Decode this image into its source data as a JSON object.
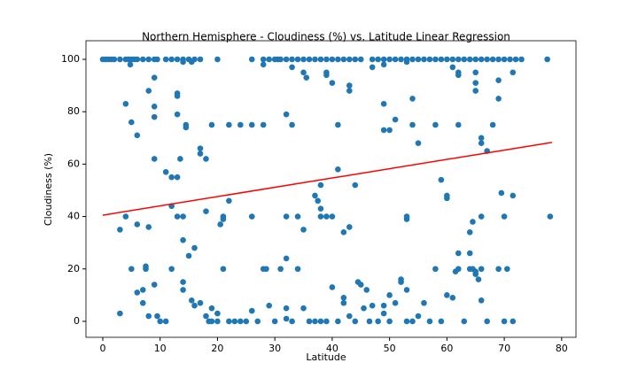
{
  "chart_data": {
    "type": "scatter",
    "title": "Northern Hemisphere - Cloudiness (%) vs. Latitude Linear Regression",
    "x_label": "Latitude",
    "y_label": "Cloudiness (%)",
    "xlim": [
      -2.93,
      82.5
    ],
    "ylim": [
      -6.1,
      107.1
    ],
    "xticks": [
      0,
      10,
      20,
      30,
      40,
      50,
      60,
      70,
      80
    ],
    "yticks": [
      0,
      20,
      40,
      60,
      80,
      100
    ],
    "series": [
      {
        "type": "scatter",
        "color": "#1f77b4",
        "x": [
          0,
          0.5,
          1,
          1.5,
          2,
          3,
          4,
          4.5,
          5,
          5.5,
          6,
          7,
          8,
          9,
          9.5,
          11,
          12,
          13,
          14,
          15,
          16,
          17,
          20,
          26,
          28,
          29,
          30,
          30.5,
          31,
          32,
          33,
          34,
          35,
          36,
          37,
          38,
          39,
          40,
          41,
          42,
          43,
          44,
          45,
          47,
          48,
          49,
          50,
          51,
          52,
          53,
          54,
          55,
          56,
          57,
          58,
          59,
          60,
          61,
          62,
          63,
          64,
          65,
          66,
          67,
          68,
          69,
          70,
          71,
          72,
          73,
          77.5,
          4.8,
          14,
          15.5,
          28,
          33,
          35,
          35.5,
          39,
          39,
          40,
          43,
          43,
          47,
          49,
          53,
          61,
          62,
          62,
          65,
          65,
          65,
          69,
          69,
          71.5,
          4,
          5,
          6,
          8,
          9,
          9,
          9,
          9,
          11,
          12,
          12,
          13,
          13,
          13,
          13,
          13,
          13.5,
          14,
          14.5,
          14.5,
          17,
          17,
          18,
          18,
          19,
          21,
          21,
          20.5,
          22,
          22,
          24,
          26,
          26,
          28,
          32,
          32,
          33,
          34,
          35,
          37,
          37.5,
          38,
          38,
          38,
          39,
          40,
          41,
          41,
          42,
          43,
          44,
          49,
          49,
          50,
          51,
          53,
          53,
          54,
          54,
          55,
          58,
          59,
          60,
          60,
          62,
          64,
          64.5,
          66,
          66,
          66,
          67,
          68,
          69.5,
          70,
          71.5,
          78,
          4,
          3,
          6,
          8,
          62,
          64,
          32,
          3,
          5,
          6,
          7,
          7,
          7.5,
          7.5,
          8,
          9,
          9.5,
          10,
          11,
          12,
          14,
          14,
          14,
          15,
          15.5,
          16,
          16,
          17,
          18,
          18.5,
          19,
          19,
          20,
          20,
          21,
          22,
          23,
          24,
          25,
          26,
          27,
          28,
          28.5,
          29,
          30,
          31,
          32,
          32,
          33,
          34,
          35,
          36,
          37,
          38,
          39,
          40,
          41,
          42,
          42,
          43,
          44,
          44.5,
          45,
          45.5,
          46,
          46.5,
          47,
          48,
          49,
          49,
          50,
          50,
          51,
          52,
          52,
          53,
          53,
          54,
          55,
          56,
          57,
          58,
          59,
          60,
          61,
          61.5,
          62,
          63,
          64,
          64.5,
          65,
          65,
          65.5,
          66,
          66,
          67,
          69,
          70,
          70.5,
          71.5
        ],
        "values": [
          100,
          100,
          100,
          100,
          100,
          100,
          100,
          100,
          100,
          100,
          100,
          100,
          100,
          100,
          100,
          100,
          100,
          100,
          100,
          100,
          100,
          100,
          100,
          100,
          100,
          100,
          100,
          100,
          100,
          100,
          100,
          100,
          100,
          100,
          100,
          100,
          100,
          100,
          100,
          100,
          100,
          100,
          100,
          100,
          100,
          100,
          100,
          100,
          100,
          100,
          100,
          100,
          100,
          100,
          100,
          100,
          100,
          100,
          100,
          100,
          100,
          100,
          100,
          100,
          100,
          100,
          100,
          100,
          100,
          100,
          100,
          98,
          99,
          99,
          98,
          97,
          95,
          93,
          95,
          94,
          91,
          90,
          88,
          97,
          98,
          99,
          97,
          95,
          94,
          95,
          91,
          88,
          92,
          85,
          95,
          83,
          76,
          71,
          88,
          82,
          78,
          62,
          93,
          57,
          55,
          44,
          87,
          79,
          86,
          55,
          40,
          62,
          40,
          75,
          74,
          64,
          66,
          62,
          42,
          75,
          40,
          39,
          37,
          75,
          46,
          75,
          75,
          40,
          75,
          79,
          40,
          75,
          40,
          35,
          48,
          46,
          52,
          43,
          40,
          40,
          40,
          75,
          58,
          34,
          36,
          52,
          83,
          73,
          73,
          77,
          39,
          40,
          85,
          75,
          68,
          75,
          54,
          47,
          48,
          75,
          34,
          38,
          40,
          70,
          68,
          65,
          75,
          49,
          40,
          48,
          40,
          40,
          35,
          37,
          36,
          26,
          26,
          24,
          3,
          20,
          11,
          7,
          12,
          21,
          20,
          2,
          14,
          2,
          0,
          0,
          20,
          12,
          15,
          31,
          25,
          8,
          28,
          6,
          7,
          2,
          0,
          0,
          5,
          3,
          0,
          20,
          0,
          0,
          0,
          0,
          4,
          0,
          20,
          20,
          6,
          0,
          20,
          5,
          1,
          0,
          20,
          5,
          0,
          0,
          0,
          0,
          13,
          0,
          7,
          9,
          2,
          0,
          15,
          14,
          5,
          12,
          0,
          6,
          0,
          6,
          3,
          10,
          0,
          7,
          16,
          15,
          12,
          0,
          0,
          2,
          7,
          0,
          20,
          0,
          10,
          9,
          19,
          20,
          0,
          20,
          20,
          19,
          18,
          16,
          20,
          8,
          0,
          20,
          0,
          20,
          0
        ]
      },
      {
        "type": "line",
        "color": "#ff0000",
        "x": [
          0,
          78.3
        ],
        "values": [
          40.5,
          68.3
        ]
      }
    ]
  }
}
